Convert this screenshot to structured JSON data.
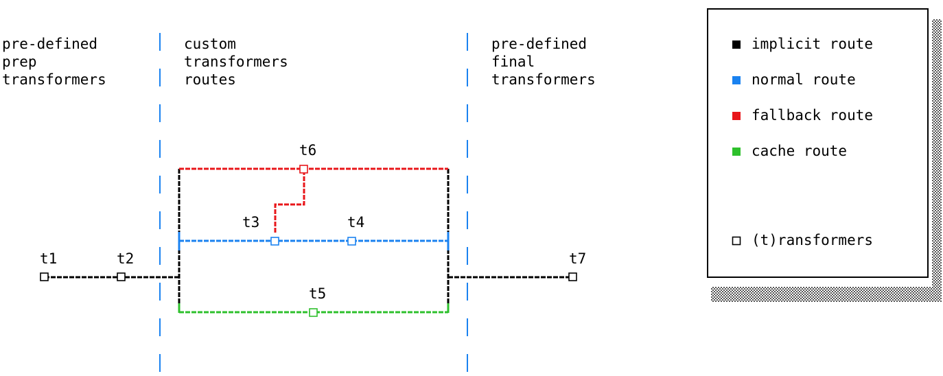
{
  "columns": [
    {
      "lines": [
        "pre-defined",
        "prep",
        "transformers"
      ]
    },
    {
      "lines": [
        "custom",
        "transformers",
        "routes"
      ]
    },
    {
      "lines": [
        "pre-defined",
        "final",
        "transformers"
      ]
    }
  ],
  "legend": {
    "items": [
      {
        "label": "implicit route",
        "color": "#000000"
      },
      {
        "label": "normal route",
        "color": "#1a82f0"
      },
      {
        "label": "fallback route",
        "color": "#e8161a"
      },
      {
        "label": "cache route",
        "color": "#2ec02c"
      }
    ],
    "transformer_label": "(t)ransformers"
  },
  "colors": {
    "implicit": "#000000",
    "normal": "#1a82f0",
    "fallback": "#e8161a",
    "cache": "#2ec02c",
    "divider": "#1a82f0"
  },
  "nodes": {
    "t1": "t1",
    "t2": "t2",
    "t3": "t3",
    "t4": "t4",
    "t5": "t5",
    "t6": "t6",
    "t7": "t7"
  }
}
